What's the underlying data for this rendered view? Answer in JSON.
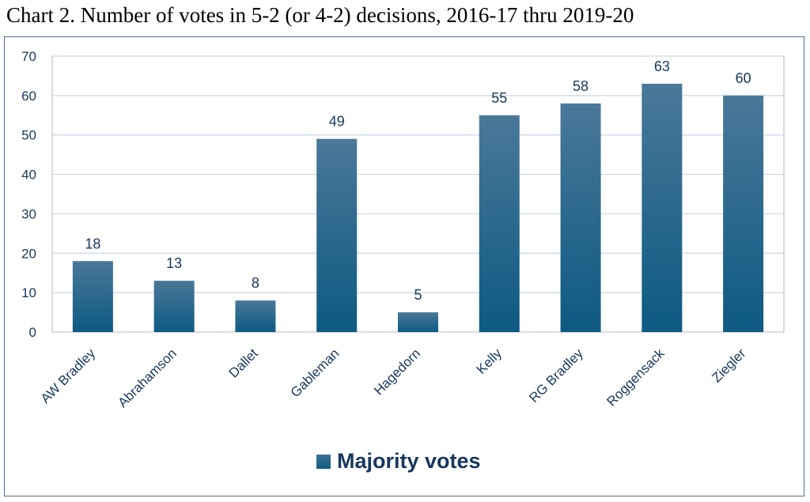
{
  "chart_title": "Chart 2. Number of votes in 5-2 (or 4-2) decisions, 2016-17 thru 2019-20",
  "colors": {
    "bar_top": "#4a7899",
    "bar_bottom": "#0d5a82",
    "label_text": "#17375e",
    "grid": "#c9d6e6",
    "frame": "#4f6b8a"
  },
  "chart_data": {
    "type": "bar",
    "title": "Chart 2. Number of votes in 5-2 (or 4-2) decisions, 2016-17 thru 2019-20",
    "xlabel": "",
    "ylabel": "",
    "categories": [
      "AW Bradley",
      "Abrahamson",
      "Dallet",
      "Gableman",
      "Hagedorn",
      "Kelly",
      "RG Bradley",
      "Roggensack",
      "Ziegler"
    ],
    "series": [
      {
        "name": "Majority votes",
        "values": [
          18,
          13,
          8,
          49,
          5,
          55,
          58,
          63,
          60
        ]
      }
    ],
    "ylim": [
      0,
      70
    ],
    "yticks": [
      0,
      10,
      20,
      30,
      40,
      50,
      60,
      70
    ],
    "grid": true,
    "legend": "bottom",
    "data_labels": true
  }
}
